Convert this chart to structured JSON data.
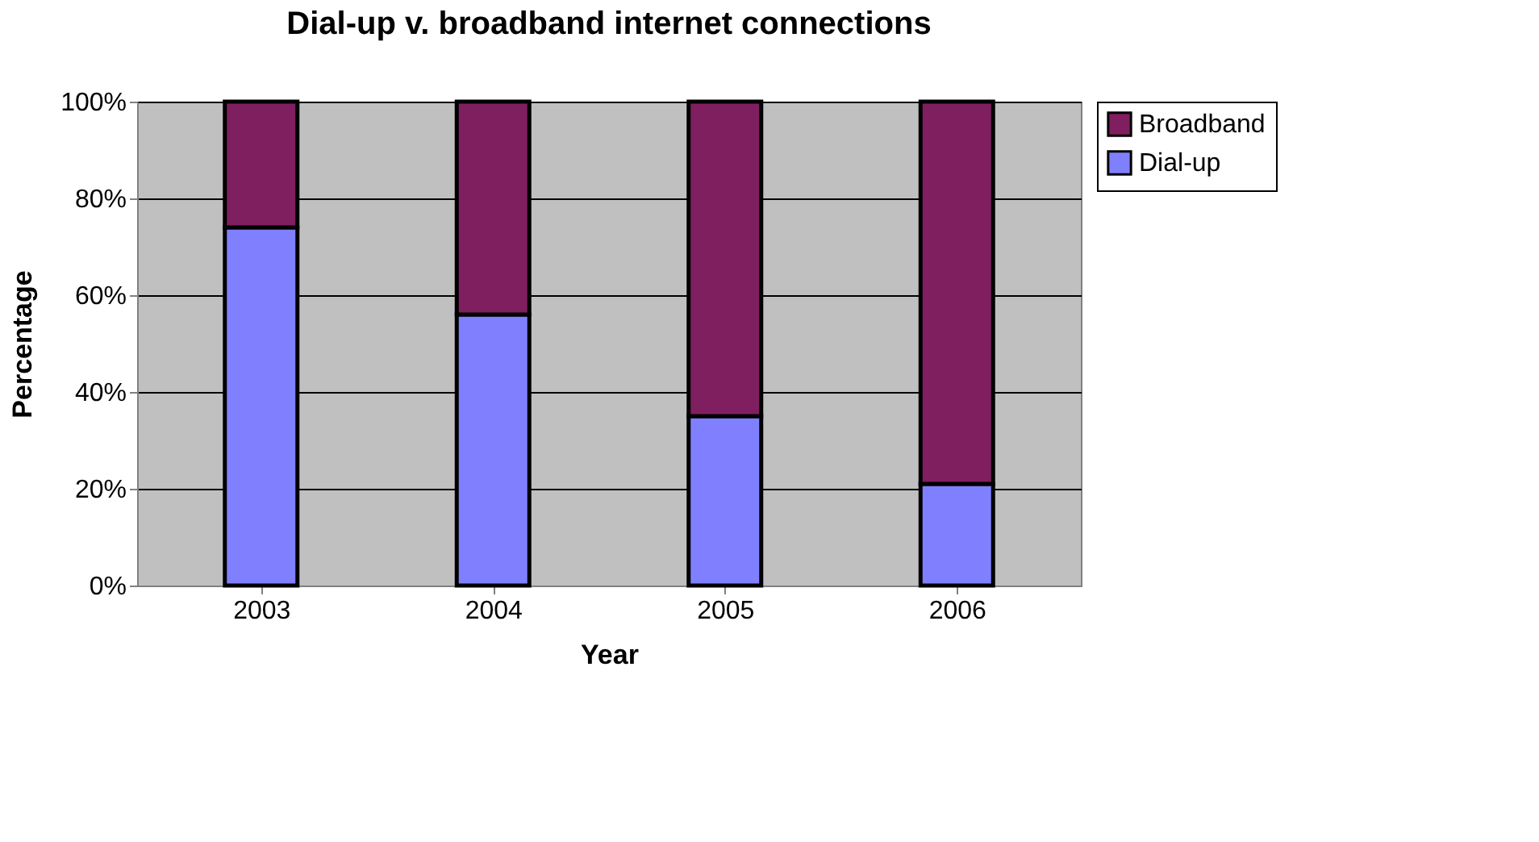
{
  "chart_data": {
    "type": "bar",
    "title": "Dial-up v. broadband internet connections",
    "xlabel": "Year",
    "ylabel": "Percentage",
    "categories": [
      "2003",
      "2004",
      "2005",
      "2006"
    ],
    "series": [
      {
        "name": "Dial-up",
        "color": "#8080ff",
        "values": [
          74,
          56,
          35,
          21
        ]
      },
      {
        "name": "Broadband",
        "color": "#7f1f5f",
        "values": [
          26,
          44,
          65,
          79
        ]
      }
    ],
    "stacked": true,
    "ylim": [
      0,
      100
    ],
    "yticks": [
      {
        "value": 0,
        "label": "0%"
      },
      {
        "value": 20,
        "label": "20%"
      },
      {
        "value": 40,
        "label": "40%"
      },
      {
        "value": 60,
        "label": "60%"
      },
      {
        "value": 80,
        "label": "80%"
      },
      {
        "value": 100,
        "label": "100%"
      }
    ],
    "grid": "y",
    "legend": "right"
  }
}
